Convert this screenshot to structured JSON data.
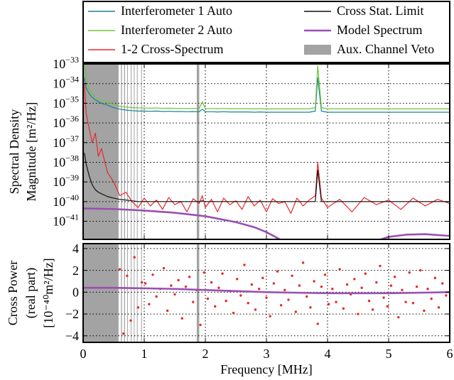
{
  "chart_data": [
    {
      "type": "line",
      "yscale": "log",
      "grid": true,
      "y_label": [
        "Spectral Density",
        "Magnitude [m²/Hz]"
      ],
      "xlim": [
        0,
        6
      ],
      "xticks": [
        0,
        1,
        2,
        3,
        4,
        5,
        6
      ],
      "ylim": [
        1.2e-42,
        1e-33
      ],
      "yticks": [
        {
          "value": 1e-33,
          "label": "10−33"
        },
        {
          "value": 1e-34,
          "label": "10−34"
        },
        {
          "value": 1e-35,
          "label": "10−35"
        },
        {
          "value": 1e-36,
          "label": "10−36"
        },
        {
          "value": 1e-37,
          "label": "10−37"
        },
        {
          "value": 1e-38,
          "label": "10−38"
        },
        {
          "value": 1e-39,
          "label": "10−39"
        },
        {
          "value": 1e-40,
          "label": "10−40"
        },
        {
          "value": 1e-41,
          "label": "10−41"
        }
      ],
      "x": [
        0.02,
        0.05,
        0.1,
        0.15,
        0.2,
        0.25,
        0.3,
        0.4,
        0.5,
        0.6,
        0.7,
        0.8,
        0.9,
        1.0,
        1.1,
        1.2,
        1.3,
        1.4,
        1.5,
        1.6,
        1.7,
        1.8,
        1.9,
        1.95,
        2.0,
        2.1,
        2.2,
        2.3,
        2.4,
        2.5,
        2.6,
        2.7,
        2.8,
        2.9,
        3.0,
        3.1,
        3.2,
        3.3,
        3.4,
        3.5,
        3.6,
        3.7,
        3.8,
        3.84,
        3.9,
        4.0,
        4.2,
        4.4,
        4.6,
        4.8,
        5.0,
        5.2,
        5.4,
        5.6,
        5.8,
        6.0
      ],
      "series": [
        {
          "name": "Interferometer 1 Auto",
          "color": "#1b8290",
          "values": [
            2e-34,
            6e-35,
            3e-35,
            2e-35,
            1.5e-35,
            1.2e-35,
            1e-35,
            8e-36,
            6e-36,
            5e-36,
            4.5e-36,
            4.2e-36,
            4e-36,
            4e-36,
            3.9e-36,
            4e-36,
            3.8e-36,
            3.9e-36,
            3.8e-36,
            3.8e-36,
            3.7e-36,
            3.8e-36,
            3.7e-36,
            5e-36,
            3.7e-36,
            3.7e-36,
            3.6e-36,
            3.7e-36,
            3.6e-36,
            3.6e-36,
            3.6e-36,
            3.6e-36,
            3.5e-36,
            3.6e-36,
            3.5e-36,
            3.5e-36,
            3.5e-36,
            3.5e-36,
            3.5e-36,
            3.5e-36,
            3.5e-36,
            3.5e-36,
            4e-36,
            2e-34,
            4e-36,
            3.5e-36,
            3.5e-36,
            3.5e-36,
            3.5e-36,
            3.5e-36,
            3.5e-36,
            3.5e-36,
            3.5e-36,
            3.5e-36,
            3.5e-36,
            3.5e-36
          ]
        },
        {
          "name": "Interferometer 2 Auto",
          "color": "#6cc43a",
          "values": [
            1e-33,
            2e-34,
            5e-35,
            3e-35,
            2e-35,
            1.6e-35,
            1.4e-35,
            1.1e-35,
            9e-36,
            7e-36,
            6.5e-36,
            6e-36,
            5.8e-36,
            5.8e-36,
            5.6e-36,
            5.8e-36,
            5.5e-36,
            5.6e-36,
            5.5e-36,
            5.5e-36,
            5.4e-36,
            5.5e-36,
            5.4e-36,
            1.2e-35,
            5.4e-36,
            5.4e-36,
            5.3e-36,
            5.4e-36,
            5.3e-36,
            5.3e-36,
            5.3e-36,
            5.3e-36,
            5.2e-36,
            5.3e-36,
            5.2e-36,
            5.2e-36,
            5.2e-36,
            5.2e-36,
            5.2e-36,
            5.2e-36,
            5.2e-36,
            5.2e-36,
            6e-36,
            8e-34,
            6e-36,
            5.2e-36,
            5.2e-36,
            5.2e-36,
            5.2e-36,
            5.2e-36,
            5.2e-36,
            5.2e-36,
            5.2e-36,
            5.2e-36,
            5.2e-36,
            5.2e-36
          ]
        },
        {
          "name": "1-2 Cross-Spectrum",
          "color": "#e8282b",
          "values": [
            1e-34,
            3e-36,
            5e-37,
            1e-37,
            3e-37,
            2e-38,
            5e-38,
            3e-39,
            1e-39,
            2e-40,
            3e-40,
            1e-40,
            5e-41,
            1.5e-40,
            6e-41,
            1.2e-40,
            4e-41,
            1.6e-40,
            7e-41,
            1e-40,
            3e-41,
            1.4e-40,
            8e-41,
            2e-40,
            5e-41,
            1.3e-40,
            3e-41,
            1.5e-40,
            7e-41,
            1.1e-40,
            4e-41,
            1.8e-40,
            6e-41,
            1.2e-40,
            3e-41,
            1.4e-40,
            8e-41,
            1e-40,
            2.5e-41,
            1.5e-40,
            6e-41,
            1.2e-40,
            2e-40,
            1e-38,
            1.5e-40,
            5e-41,
            1.3e-40,
            3e-41,
            1.6e-40,
            7e-41,
            1.2e-40,
            4e-41,
            1.5e-40,
            6e-41,
            1.3e-40,
            8e-41
          ]
        },
        {
          "name": "Cross Stat. Limit",
          "color": "#111111",
          "values": [
            3e-38,
            8e-39,
            2e-39,
            7e-40,
            4e-40,
            3e-40,
            2.5e-40,
            1.8e-40,
            1.5e-40,
            1.3e-40,
            1.2e-40,
            1.1e-40,
            1e-40,
            1e-40,
            1e-40,
            1e-40,
            1e-40,
            1e-40,
            1e-40,
            1e-40,
            1e-40,
            1e-40,
            1e-40,
            1.1e-40,
            1e-40,
            1e-40,
            1e-40,
            1e-40,
            1e-40,
            1e-40,
            1e-40,
            1e-40,
            1e-40,
            1e-40,
            1e-40,
            1e-40,
            1e-40,
            1e-40,
            1e-40,
            1e-40,
            1e-40,
            1e-40,
            1e-40,
            4e-39,
            1e-40,
            1e-40,
            1e-40,
            1e-40,
            1e-40,
            1e-40,
            1e-40,
            1e-40,
            1e-40,
            1e-40,
            1e-40,
            1e-40
          ]
        },
        {
          "name": "Model Spectrum",
          "color": "#9b4fb2",
          "width": 2.6,
          "x": [
            0,
            0.5,
            1,
            1.5,
            2,
            2.5,
            2.8,
            3.0,
            3.2,
            3.3,
            4.0,
            4.7,
            5.0,
            5.3,
            5.6,
            6.0
          ],
          "values": [
            4.5e-41,
            4.2e-41,
            3.5e-41,
            2.7e-41,
            1.8e-41,
            9e-42,
            5e-42,
            2.8e-42,
            1.3e-42,
            8e-43,
            null,
            8e-43,
            1.6e-42,
            2.1e-42,
            2.2e-42,
            1.8e-42
          ]
        }
      ],
      "veto": {
        "name": "Aux. Channel Veto",
        "color": "#a3a3a3",
        "regions": [
          [
            0,
            0.58
          ],
          [
            0.62,
            0.635
          ],
          [
            0.67,
            0.685
          ],
          [
            0.72,
            0.73
          ],
          [
            0.78,
            0.79
          ],
          [
            0.83,
            0.84
          ],
          [
            0.88,
            0.89
          ],
          [
            0.95,
            0.96
          ],
          [
            1.86,
            1.9
          ]
        ]
      }
    },
    {
      "type": "scatter",
      "grid": true,
      "y_label": [
        "Cross Power",
        "(real part)",
        "[10⁻⁴⁰m²/Hz]"
      ],
      "x_label": "Frequency [MHz]",
      "xlim": [
        0,
        6
      ],
      "xticks": [
        0,
        1,
        2,
        3,
        4,
        5,
        6
      ],
      "ylim": [
        -4.6,
        4.45
      ],
      "yticks": [
        {
          "value": -4,
          "label": "−4"
        },
        {
          "value": -2,
          "label": "−2"
        },
        0,
        2,
        4
      ],
      "x": [
        0.6,
        0.66,
        0.72,
        0.78,
        0.84,
        0.9,
        0.96,
        1.02,
        1.08,
        1.14,
        1.2,
        1.26,
        1.32,
        1.38,
        1.44,
        1.5,
        1.56,
        1.62,
        1.68,
        1.74,
        1.8,
        1.86,
        1.92,
        1.98,
        2.04,
        2.1,
        2.16,
        2.22,
        2.28,
        2.34,
        2.4,
        2.46,
        2.52,
        2.58,
        2.64,
        2.7,
        2.76,
        2.82,
        2.88,
        2.94,
        3.0,
        3.06,
        3.12,
        3.18,
        3.24,
        3.3,
        3.36,
        3.42,
        3.48,
        3.54,
        3.6,
        3.66,
        3.72,
        3.78,
        3.84,
        3.9,
        3.96,
        4.02,
        4.08,
        4.14,
        4.2,
        4.26,
        4.32,
        4.38,
        4.44,
        4.5,
        4.56,
        4.62,
        4.68,
        4.74,
        4.8,
        4.86,
        4.92,
        4.98,
        5.04,
        5.1,
        5.16,
        5.22,
        5.28,
        5.34,
        5.4,
        5.46,
        5.52,
        5.58,
        5.64,
        5.7,
        5.76,
        5.82,
        5.88,
        5.94
      ],
      "series": [
        {
          "color": "#e8282b",
          "values": [
            2.1,
            -3.8,
            1.5,
            -2.6,
            3.2,
            -1.4,
            0.9,
            0.8,
            -1.1,
            1.6,
            -0.4,
            0.3,
            2.2,
            -1.7,
            0.6,
            -0.2,
            1.1,
            -2.4,
            0.5,
            1.4,
            -0.9,
            0.2,
            -3.0,
            1.8,
            -0.6,
            0.9,
            -1.3,
            0.4,
            1.7,
            -0.8,
            0.1,
            -1.9,
            1.2,
            -0.3,
            2.5,
            -1.0,
            0.7,
            -1.6,
            0.3,
            1.3,
            -0.5,
            -2.2,
            0.8,
            1.9,
            -1.2,
            0.2,
            -0.7,
            1.5,
            -1.8,
            0.6,
            2.7,
            -0.4,
            -1.4,
            1.0,
            -2.9,
            0.5,
            1.6,
            -1.1,
            0.3,
            -0.9,
            2.1,
            -1.5,
            0.7,
            -0.2,
            1.2,
            -2.0,
            0.4,
            1.7,
            -0.8,
            -1.6,
            0.9,
            2.4,
            -0.5,
            -1.3,
            0.6,
            1.4,
            -2.3,
            0.2,
            -0.9,
            1.8,
            -1.0,
            0.5,
            2.0,
            -1.7,
            0.3,
            -0.6,
            1.3,
            -1.4,
            0.8,
            -0.3
          ]
        },
        {
          "type": "line",
          "color": "#9b4fb2",
          "width": 2.6,
          "x": [
            0,
            0.5,
            1,
            1.5,
            2,
            2.5,
            3,
            3.5,
            4,
            4.5,
            5,
            5.5,
            6
          ],
          "values": [
            0.4,
            0.4,
            0.35,
            0.3,
            0.2,
            0.1,
            0,
            -0.05,
            -0.1,
            -0.1,
            -0.1,
            -0.05,
            0
          ]
        }
      ],
      "veto": {
        "color": "#a3a3a3",
        "regions": [
          [
            0,
            0.58
          ],
          [
            0.62,
            0.635
          ],
          [
            0.67,
            0.685
          ],
          [
            0.72,
            0.73
          ],
          [
            0.78,
            0.79
          ],
          [
            0.83,
            0.84
          ],
          [
            0.88,
            0.89
          ],
          [
            0.95,
            0.96
          ],
          [
            1.86,
            1.9
          ]
        ]
      }
    }
  ]
}
